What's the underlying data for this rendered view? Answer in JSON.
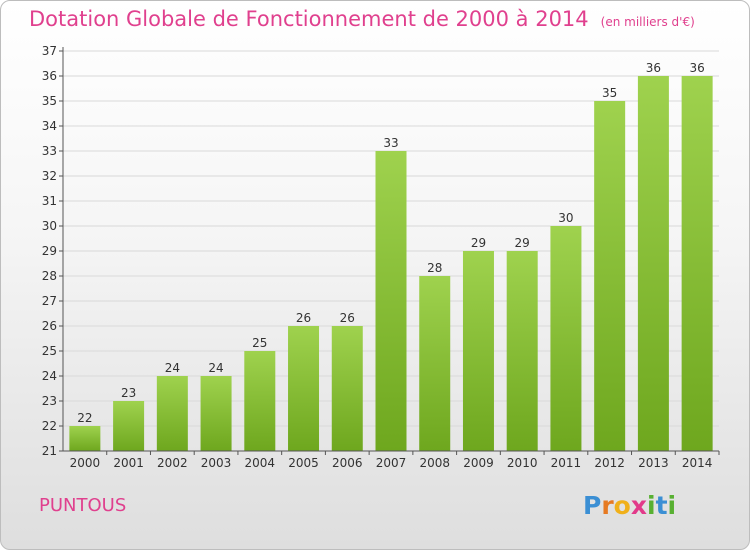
{
  "title": "Dotation Globale de Fonctionnement de 2000 à 2014",
  "subtitle": "(en milliers d'€)",
  "commune": "PUNTOUS",
  "logo": {
    "letters": [
      "P",
      "r",
      "o",
      "x",
      "i",
      "t",
      "i"
    ],
    "colors": [
      "#3b8fd4",
      "#e67a22",
      "#f0b01a",
      "#e23a8a",
      "#58b032",
      "#3b8fd4",
      "#58b032"
    ]
  },
  "colors": {
    "bar_light": "#9fd24e",
    "bar_dark": "#6ea71e",
    "title": "#e0408e",
    "grid": "#d9d9d9"
  },
  "chart_data": {
    "type": "bar",
    "categories": [
      "2000",
      "2001",
      "2002",
      "2003",
      "2004",
      "2005",
      "2006",
      "2007",
      "2008",
      "2009",
      "2010",
      "2011",
      "2012",
      "2013",
      "2014"
    ],
    "values": [
      22,
      23,
      24,
      24,
      25,
      26,
      26,
      33,
      28,
      29,
      29,
      30,
      35,
      36,
      36
    ],
    "yticks": [
      21,
      22,
      23,
      24,
      25,
      26,
      27,
      28,
      29,
      30,
      31,
      32,
      33,
      34,
      35,
      36,
      37
    ],
    "ylim": [
      21,
      37
    ],
    "grid": true,
    "xlabel": "",
    "ylabel": ""
  }
}
